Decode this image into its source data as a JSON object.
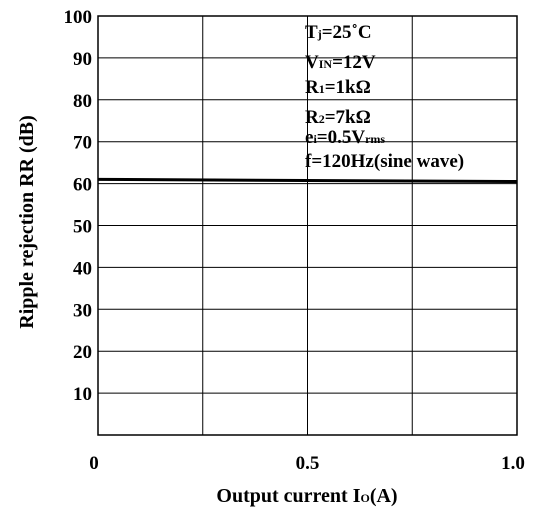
{
  "chart_data": {
    "type": "line",
    "xlabel_main": "Output current I",
    "xlabel_sub": "O",
    "xlabel_unit": "(A)",
    "ylabel": "Ripple rejection RR (dB)",
    "xlim": [
      0,
      1.0
    ],
    "ylim": [
      0,
      100
    ],
    "x_ticks": [
      {
        "value": 0,
        "label": "0"
      },
      {
        "value": 0.5,
        "label": "0.5"
      },
      {
        "value": 1.0,
        "label": "1.0"
      }
    ],
    "x_grid": [
      0.25,
      0.5,
      0.75
    ],
    "y_ticks": [
      {
        "value": 10,
        "label": "10"
      },
      {
        "value": 20,
        "label": "20"
      },
      {
        "value": 30,
        "label": "30"
      },
      {
        "value": 40,
        "label": "40"
      },
      {
        "value": 50,
        "label": "50"
      },
      {
        "value": 60,
        "label": "60"
      },
      {
        "value": 70,
        "label": "70"
      },
      {
        "value": 80,
        "label": "80"
      },
      {
        "value": 90,
        "label": "90"
      },
      {
        "value": 100,
        "label": "100"
      }
    ],
    "grid": true,
    "series": [
      {
        "x": [
          0,
          1.0
        ],
        "y": [
          61,
          60.5
        ],
        "color": "#000000"
      }
    ],
    "conditions": [
      {
        "main": "T",
        "sub": "j",
        "rest": "=25˚C"
      },
      {
        "main": "V",
        "sub": "IN",
        "rest": "=12V"
      },
      {
        "main": "R",
        "sub": "1",
        "rest": "=1kΩ"
      },
      {
        "main": "R",
        "sub": "2",
        "rest": "=7kΩ"
      },
      {
        "main": "e",
        "sub": "i",
        "rest": "=0.5V",
        "sub2": "rms"
      },
      {
        "main": "f=120Hz(sine wave)",
        "sub": "",
        "rest": ""
      }
    ]
  }
}
